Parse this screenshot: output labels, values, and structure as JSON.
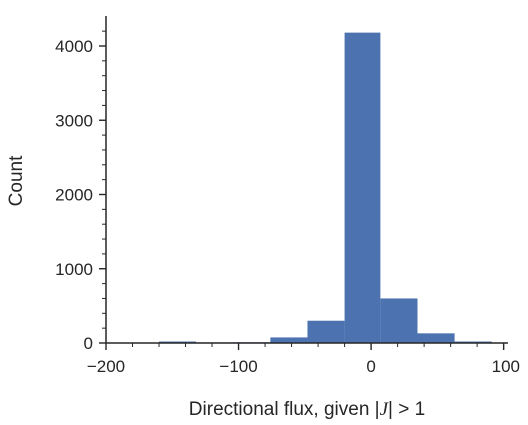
{
  "chart_data": {
    "type": "bar",
    "subtype": "histogram",
    "title": "",
    "xlabel": "Directional flux, given |J| > 1",
    "ylabel": "Count",
    "xlim": [
      -200,
      100
    ],
    "ylim": [
      0,
      4400
    ],
    "xticks": [
      {
        "value": -200,
        "label": "−200"
      },
      {
        "value": -100,
        "label": "−100"
      },
      {
        "value": 0,
        "label": "0"
      },
      {
        "value": 100,
        "label": "100"
      }
    ],
    "yticks": [
      {
        "value": 0,
        "label": "0"
      },
      {
        "value": 1000,
        "label": "1000"
      },
      {
        "value": 2000,
        "label": "2000"
      },
      {
        "value": 3000,
        "label": "3000"
      },
      {
        "value": 4000,
        "label": "4000"
      }
    ],
    "bar_color": "#4c72b0",
    "grid": false,
    "bins": [
      {
        "x0": -160,
        "x1": -132,
        "count": 20
      },
      {
        "x0": -132,
        "x1": -104,
        "count": 8
      },
      {
        "x0": -104,
        "x1": -76,
        "count": 10
      },
      {
        "x0": -76,
        "x1": -48,
        "count": 75
      },
      {
        "x0": -48,
        "x1": -20,
        "count": 300
      },
      {
        "x0": -20,
        "x1": 7,
        "count": 4180
      },
      {
        "x0": 7,
        "x1": 35,
        "count": 600
      },
      {
        "x0": 35,
        "x1": 63,
        "count": 130
      },
      {
        "x0": 63,
        "x1": 91,
        "count": 20
      }
    ]
  }
}
